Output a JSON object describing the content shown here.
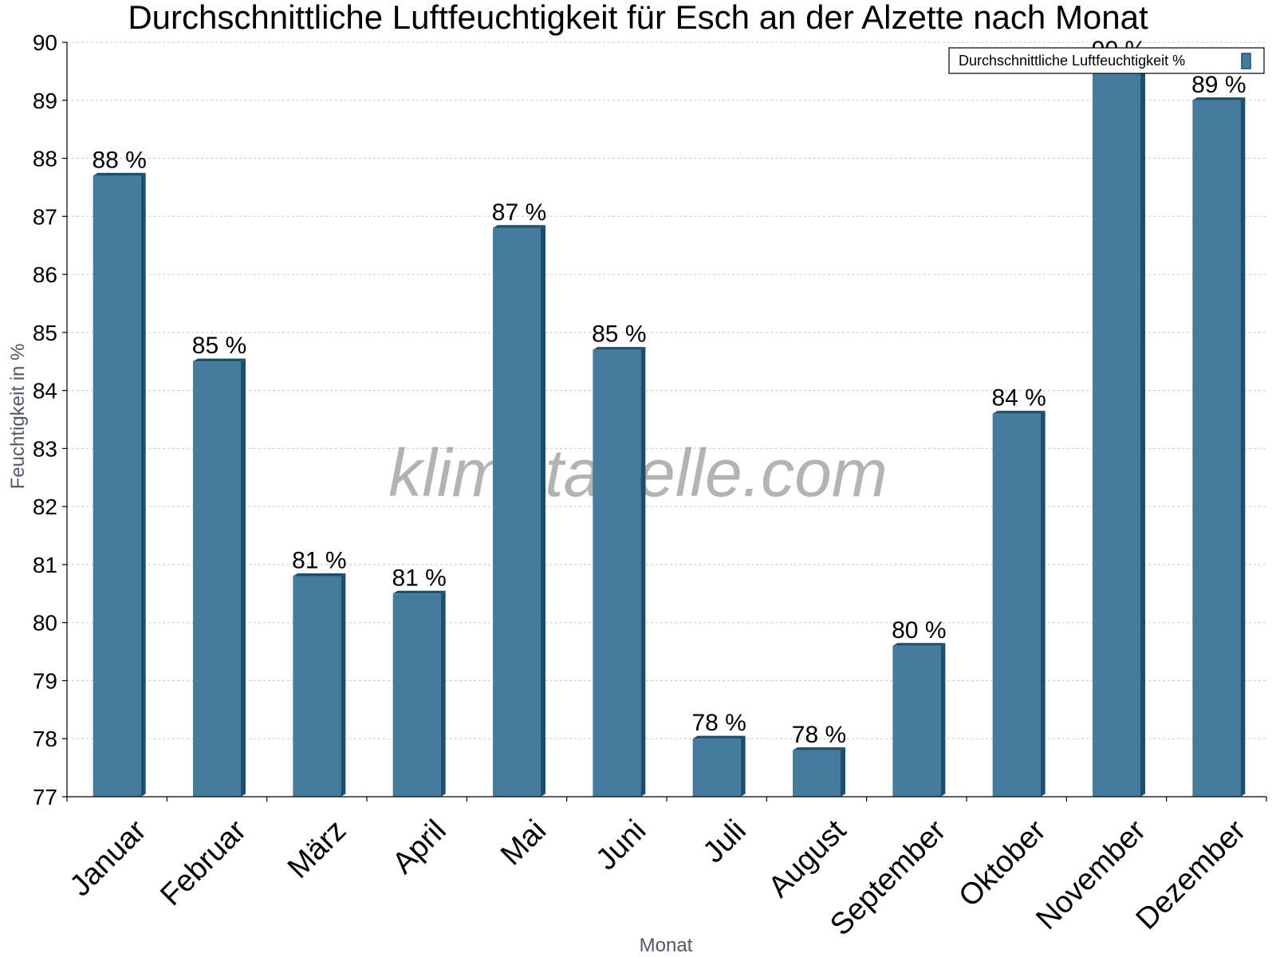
{
  "chart_data": {
    "type": "bar",
    "title": "Durchschnittliche Luftfeuchtigkeit für Esch an der Alzette nach Monat",
    "xlabel": "Monat",
    "ylabel": "Feuchtigkeit in %",
    "categories": [
      "Januar",
      "Februar",
      "März",
      "April",
      "Mai",
      "Juni",
      "Juli",
      "August",
      "September",
      "Oktober",
      "November",
      "Dezember"
    ],
    "series": [
      {
        "name": "Durchschnittliche Luftfeuchtigkeit %",
        "values": [
          87.7,
          84.5,
          80.8,
          80.5,
          86.8,
          84.7,
          78.0,
          77.8,
          79.6,
          83.6,
          89.6,
          89.0
        ],
        "labels": [
          "88 %",
          "85 %",
          "81 %",
          "81 %",
          "87 %",
          "85 %",
          "78 %",
          "78 %",
          "80 %",
          "84 %",
          "90 %",
          "89 %"
        ]
      }
    ],
    "ylim": [
      77,
      90
    ],
    "yticks": [
      "77",
      "78",
      "79",
      "80",
      "81",
      "82",
      "83",
      "84",
      "85",
      "86",
      "87",
      "88",
      "89",
      "90"
    ],
    "grid": true,
    "legend_position": "top-right",
    "colors": {
      "bar": "#457b9d",
      "bar_side": "#1d4e6e",
      "grid": "#c8c8c8"
    },
    "watermark": "klimatabelle.com"
  }
}
